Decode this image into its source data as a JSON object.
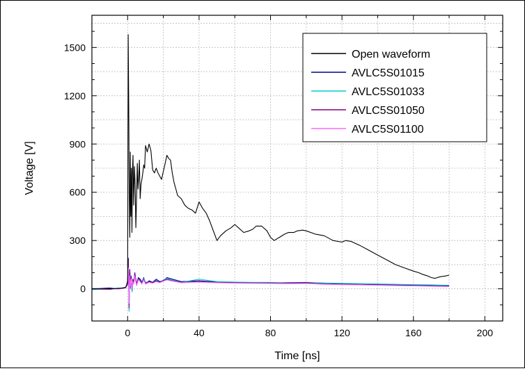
{
  "chart_data": {
    "type": "line",
    "title": "",
    "xlabel": "Time [ns]",
    "ylabel": "Voltage [V]",
    "xlim": [
      -20,
      210
    ],
    "ylim": [
      -200,
      1700
    ],
    "xticks": [
      0,
      40,
      80,
      120,
      160,
      200
    ],
    "yticks": [
      0,
      300,
      600,
      900,
      1200,
      1500
    ],
    "grid": true,
    "legend_position": "top-right",
    "series": [
      {
        "name": "Open waveform",
        "color": "#000000",
        "x": [
          -20,
          -10,
          -5,
          -2,
          -1,
          0,
          0.3,
          0.6,
          0.9,
          1.2,
          1.5,
          1.8,
          2.1,
          2.4,
          2.7,
          3,
          3.4,
          3.8,
          4.2,
          4.6,
          5,
          5.4,
          5.8,
          6.2,
          6.6,
          7,
          7.5,
          8,
          8.5,
          9,
          9.5,
          10,
          11,
          12,
          13,
          14,
          15,
          16,
          17,
          18,
          19,
          20,
          21,
          22,
          23,
          24,
          25,
          26,
          27,
          28,
          30,
          32,
          34,
          36,
          38,
          40,
          42,
          44,
          46,
          48,
          50,
          52,
          55,
          58,
          60,
          62,
          65,
          68,
          70,
          72,
          75,
          78,
          80,
          82,
          85,
          88,
          90,
          93,
          95,
          98,
          100,
          105,
          110,
          115,
          120,
          122,
          125,
          130,
          135,
          140,
          145,
          150,
          155,
          160,
          163,
          165,
          168,
          170,
          172,
          175,
          178,
          180
        ],
        "y": [
          0,
          0,
          2,
          5,
          10,
          30,
          1580,
          1200,
          600,
          320,
          850,
          450,
          750,
          350,
          720,
          830,
          520,
          760,
          650,
          380,
          560,
          780,
          620,
          690,
          800,
          560,
          650,
          680,
          720,
          770,
          750,
          890,
          850,
          900,
          860,
          740,
          720,
          750,
          720,
          700,
          680,
          730,
          780,
          830,
          810,
          800,
          720,
          660,
          620,
          580,
          560,
          520,
          500,
          490,
          470,
          540,
          500,
          470,
          420,
          360,
          300,
          330,
          360,
          380,
          400,
          380,
          350,
          360,
          370,
          390,
          390,
          360,
          320,
          300,
          320,
          340,
          350,
          350,
          360,
          365,
          360,
          340,
          330,
          300,
          290,
          300,
          295,
          270,
          240,
          210,
          180,
          150,
          130,
          110,
          100,
          90,
          80,
          70,
          65,
          75,
          80,
          85
        ]
      },
      {
        "name": "AVLC5S01015",
        "color": "#00008b",
        "x": [
          -20,
          -10,
          -5,
          -1,
          0,
          0.4,
          0.8,
          1.2,
          1.6,
          2,
          2.5,
          3,
          3.5,
          4,
          5,
          6,
          7,
          8,
          9,
          10,
          12,
          14,
          16,
          18,
          20,
          22,
          25,
          30,
          40,
          50,
          60,
          70,
          80,
          90,
          100,
          110,
          120,
          130,
          140,
          150,
          160,
          170,
          180
        ],
        "y": [
          0,
          5,
          0,
          10,
          50,
          190,
          -100,
          120,
          20,
          80,
          -10,
          60,
          40,
          100,
          30,
          70,
          60,
          40,
          70,
          30,
          50,
          40,
          60,
          45,
          50,
          70,
          60,
          45,
          50,
          42,
          40,
          38,
          38,
          38,
          40,
          35,
          32,
          30,
          28,
          25,
          22,
          20,
          18
        ]
      },
      {
        "name": "AVLC5S01033",
        "color": "#00cccc",
        "x": [
          -20,
          -10,
          -5,
          -1,
          0,
          0.4,
          0.8,
          1.2,
          1.6,
          2,
          2.5,
          3,
          3.5,
          4,
          5,
          6,
          7,
          8,
          9,
          10,
          12,
          14,
          16,
          18,
          20,
          22,
          25,
          30,
          40,
          50,
          60,
          70,
          80,
          90,
          100,
          110,
          120,
          130,
          140,
          150,
          160,
          170,
          180
        ],
        "y": [
          -5,
          0,
          5,
          5,
          40,
          150,
          -140,
          90,
          0,
          70,
          -20,
          50,
          30,
          90,
          20,
          60,
          50,
          35,
          65,
          40,
          45,
          35,
          55,
          40,
          55,
          65,
          55,
          40,
          60,
          45,
          42,
          40,
          40,
          35,
          38,
          36,
          34,
          32,
          30,
          28,
          26,
          24,
          22
        ]
      },
      {
        "name": "AVLC5S01050",
        "color": "#800080",
        "x": [
          -20,
          -10,
          -5,
          -1,
          0,
          0.4,
          0.8,
          1.2,
          1.6,
          2,
          2.5,
          3,
          3.5,
          4,
          5,
          6,
          7,
          8,
          9,
          10,
          12,
          14,
          16,
          18,
          20,
          22,
          25,
          30,
          40,
          50,
          60,
          70,
          80,
          90,
          100,
          110,
          120,
          130,
          140,
          150,
          160,
          170,
          180
        ],
        "y": [
          0,
          -3,
          2,
          8,
          45,
          170,
          -120,
          110,
          10,
          75,
          -5,
          55,
          35,
          95,
          25,
          65,
          55,
          30,
          60,
          35,
          45,
          38,
          50,
          40,
          52,
          60,
          50,
          40,
          45,
          40,
          38,
          36,
          36,
          34,
          36,
          30,
          28,
          26,
          24,
          22,
          20,
          18,
          16
        ]
      },
      {
        "name": "AVLC5S01100",
        "color": "#ff66ff",
        "x": [
          -20,
          -10,
          -5,
          -1,
          0,
          0.4,
          0.8,
          1.2,
          1.6,
          2,
          2.5,
          3,
          3.5,
          4,
          5,
          6,
          7,
          8,
          9,
          10,
          12,
          14,
          16,
          18,
          20,
          22,
          25,
          30,
          40,
          50,
          60,
          70,
          80,
          90,
          100,
          110,
          120,
          130,
          140,
          150,
          160,
          170,
          180
        ],
        "y": [
          2,
          0,
          -2,
          6,
          35,
          130,
          -90,
          80,
          15,
          60,
          0,
          45,
          30,
          80,
          20,
          55,
          45,
          30,
          55,
          30,
          40,
          35,
          45,
          38,
          48,
          55,
          48,
          38,
          42,
          38,
          35,
          34,
          33,
          32,
          33,
          28,
          26,
          24,
          22,
          20,
          18,
          16,
          14
        ]
      }
    ]
  }
}
